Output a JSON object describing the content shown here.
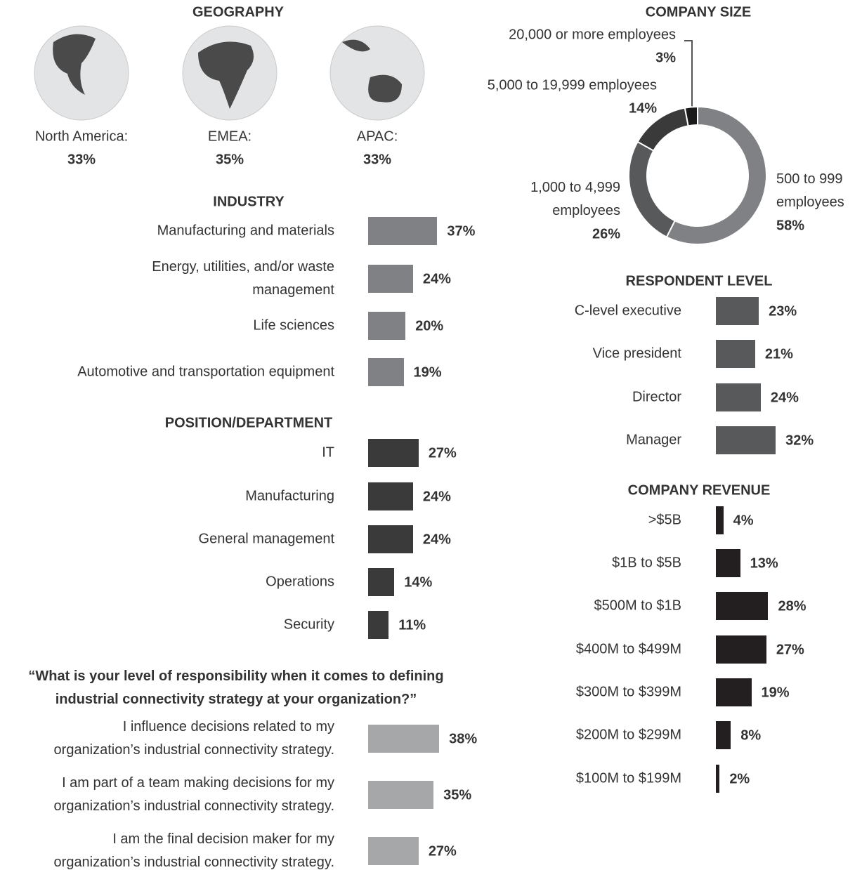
{
  "chart_data": [
    {
      "type": "icon",
      "title": "GEOGRAPHY",
      "categories": [
        "North America:",
        "EMEA:",
        "APAC:"
      ],
      "values": [
        33,
        35,
        33
      ],
      "value_labels": [
        "33%",
        "35%",
        "33%"
      ],
      "color": "#e3e4e5"
    },
    {
      "type": "donut",
      "title": "COMPANY SIZE",
      "categories": [
        "500 to 999\nemployees",
        "1,000 to 4,999\nemployees",
        "5,000 to 19,999 employees",
        "20,000 or more employees"
      ],
      "values": [
        58,
        26,
        14,
        3
      ],
      "value_labels": [
        "58%",
        "26%",
        "14%",
        "3%"
      ],
      "colors": [
        "#808184",
        "#58595b",
        "#3a3a3a",
        "#1a1a1a"
      ]
    },
    {
      "type": "hbar",
      "title": "INDUSTRY",
      "categories": [
        "Manufacturing and materials",
        "Energy, utilities, and/or waste\nmanagement",
        "Life sciences",
        "Automotive and transportation equipment"
      ],
      "values": [
        37,
        24,
        20,
        19
      ],
      "value_labels": [
        "37%",
        "24%",
        "20%",
        "19%"
      ],
      "color": "#808184"
    },
    {
      "type": "hbar",
      "title": "POSITION/DEPARTMENT",
      "categories": [
        "IT",
        "Manufacturing",
        "General management",
        "Operations",
        "Security"
      ],
      "values": [
        27,
        24,
        24,
        14,
        11
      ],
      "value_labels": [
        "27%",
        "24%",
        "24%",
        "14%",
        "11%"
      ],
      "color": "#3a3a3a"
    },
    {
      "type": "hbar",
      "title": "RESPONDENT LEVEL",
      "categories": [
        "C-level executive",
        "Vice president",
        "Director",
        "Manager"
      ],
      "values": [
        23,
        21,
        24,
        32
      ],
      "value_labels": [
        "23%",
        "21%",
        "24%",
        "32%"
      ],
      "color": "#58595b"
    },
    {
      "type": "hbar",
      "title": "“What is your level of responsibility when it comes to defining\nindustrial connectivity strategy at your organization?”",
      "categories": [
        "I influence decisions related to my\norganization’s industrial connectivity strategy.",
        "I am part of a team making decisions for my\norganization’s industrial connectivity strategy.",
        "I am the final decision maker for my\norganization’s industrial connectivity strategy."
      ],
      "values": [
        38,
        35,
        27
      ],
      "value_labels": [
        "38%",
        "35%",
        "27%"
      ],
      "color": "#a6a7a9"
    },
    {
      "type": "hbar",
      "title": "COMPANY REVENUE",
      "categories": [
        ">$5B",
        "$1B to $5B",
        "$500M to $1B",
        "$400M to $499M",
        "$300M to $399M",
        "$200M to $299M",
        "$100M to $199M"
      ],
      "values": [
        4,
        13,
        28,
        27,
        19,
        8,
        2
      ],
      "value_labels": [
        "4%",
        "13%",
        "28%",
        "27%",
        "19%",
        "8%",
        "2%"
      ],
      "color": "#231f20"
    }
  ]
}
